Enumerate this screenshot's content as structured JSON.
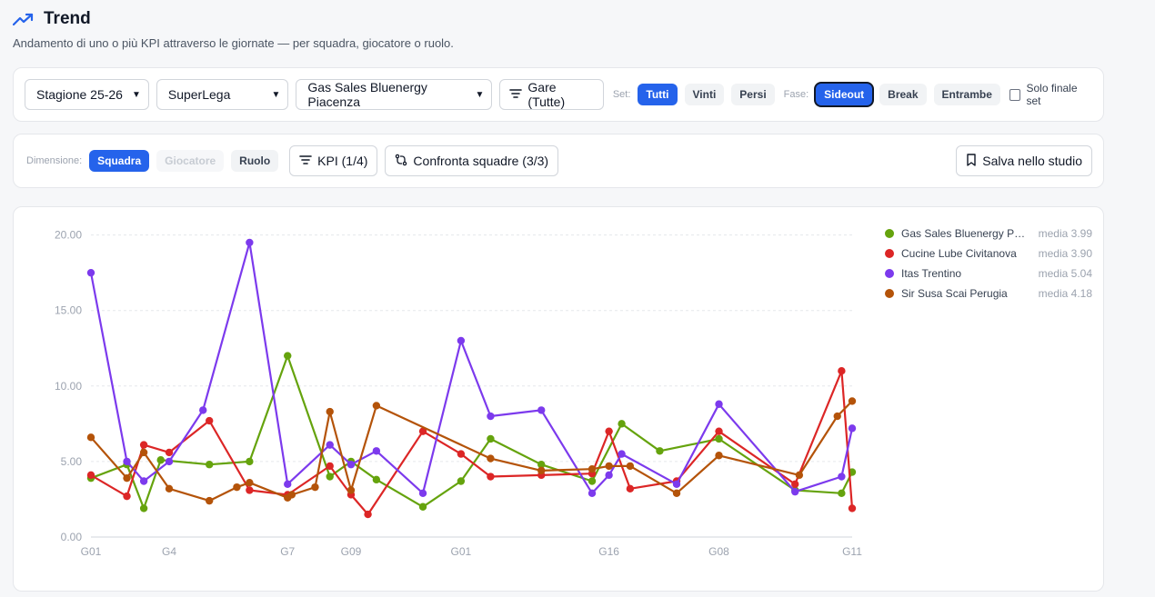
{
  "header": {
    "title": "Trend",
    "subtitle": "Andamento di uno o più KPI attraverso le giornate — per squadra, giocatore o ruolo."
  },
  "filters": {
    "season": "Stagione 25-26",
    "league": "SuperLega",
    "team": "Gas Sales Bluenergy Piacenza",
    "games_label": "Gare (Tutte)",
    "set_label": "Set:",
    "set_options": [
      "Tutti",
      "Vinti",
      "Persi"
    ],
    "set_selected": "Tutti",
    "phase_label": "Fase:",
    "phase_options": [
      "Sideout",
      "Break",
      "Entrambe"
    ],
    "phase_selected": "Sideout",
    "final_set_label": "Solo finale set",
    "final_set_checked": false
  },
  "dimensions": {
    "label": "Dimensione:",
    "options": [
      "Squadra",
      "Giocatore",
      "Ruolo"
    ],
    "selected": "Squadra",
    "disabled": [
      "Giocatore"
    ],
    "kpi_label": "KPI (1/4)",
    "compare_label": "Confronta squadre (3/3)",
    "save_label": "Salva nello studio"
  },
  "colors": {
    "accent": "#2563eb",
    "green": "#65a30d",
    "red": "#dc2626",
    "purple": "#7c3aed",
    "orange": "#b45309"
  },
  "icons": {
    "trend": "trending-up-icon",
    "filter": "filter-icon",
    "compare": "compare-arrows-icon",
    "save": "bookmark-icon",
    "select": "chevron-down-icon"
  },
  "chart_data": {
    "type": "line",
    "ylim": [
      0,
      21
    ],
    "yticks": [
      "0.00",
      "5.00",
      "10.00",
      "15.00",
      "20.00"
    ],
    "xlim": [
      0,
      36
    ],
    "xticks": [
      {
        "x": 0,
        "label": "G01"
      },
      {
        "x": 3.7,
        "label": "G4"
      },
      {
        "x": 9.3,
        "label": "G7"
      },
      {
        "x": 12.3,
        "label": "G09"
      },
      {
        "x": 17.5,
        "label": "G01"
      },
      {
        "x": 24.5,
        "label": "G16"
      },
      {
        "x": 29.7,
        "label": "G08"
      },
      {
        "x": 36,
        "label": "G11"
      }
    ],
    "grid": true,
    "legend": "right",
    "series": [
      {
        "name": "Gas Sales Bluenergy Piacenza",
        "average": "media 3.99",
        "color": "#65a30d",
        "points": [
          [
            0,
            3.9
          ],
          [
            1.7,
            4.8
          ],
          [
            2.5,
            1.9
          ],
          [
            3.3,
            5.1
          ],
          [
            5.6,
            4.8
          ],
          [
            7.5,
            5.0
          ],
          [
            9.3,
            12.0
          ],
          [
            11.3,
            4.0
          ],
          [
            12.3,
            5.0
          ],
          [
            13.5,
            3.8
          ],
          [
            15.7,
            2.0
          ],
          [
            17.5,
            3.7
          ],
          [
            18.9,
            6.5
          ],
          [
            21.3,
            4.8
          ],
          [
            23.7,
            3.7
          ],
          [
            25.1,
            7.5
          ],
          [
            26.9,
            5.7
          ],
          [
            29.7,
            6.5
          ],
          [
            33.3,
            3.1
          ],
          [
            35.5,
            2.9
          ],
          [
            36,
            4.3
          ]
        ]
      },
      {
        "name": "Cucine Lube Civitanova",
        "average": "media 3.90",
        "color": "#dc2626",
        "points": [
          [
            0,
            4.1
          ],
          [
            1.7,
            2.7
          ],
          [
            2.5,
            6.1
          ],
          [
            3.7,
            5.6
          ],
          [
            5.6,
            7.7
          ],
          [
            7.5,
            3.1
          ],
          [
            9.3,
            2.8
          ],
          [
            11.3,
            4.7
          ],
          [
            12.3,
            2.8
          ],
          [
            13.1,
            1.5
          ],
          [
            15.7,
            7.0
          ],
          [
            17.5,
            5.5
          ],
          [
            18.9,
            4.0
          ],
          [
            21.3,
            4.1
          ],
          [
            23.7,
            4.2
          ],
          [
            24.5,
            7.0
          ],
          [
            25.5,
            3.2
          ],
          [
            27.7,
            3.7
          ],
          [
            29.7,
            7.0
          ],
          [
            33.3,
            3.5
          ],
          [
            35.5,
            11.0
          ],
          [
            36,
            1.9
          ]
        ]
      },
      {
        "name": "Itas Trentino",
        "average": "media 5.04",
        "color": "#7c3aed",
        "points": [
          [
            0,
            17.5
          ],
          [
            1.7,
            5.0
          ],
          [
            2.5,
            3.7
          ],
          [
            3.7,
            5.0
          ],
          [
            5.3,
            8.4
          ],
          [
            7.5,
            19.5
          ],
          [
            9.3,
            3.5
          ],
          [
            11.3,
            6.1
          ],
          [
            12.3,
            4.8
          ],
          [
            13.5,
            5.7
          ],
          [
            15.7,
            2.9
          ],
          [
            17.5,
            13.0
          ],
          [
            18.9,
            8.0
          ],
          [
            21.3,
            8.4
          ],
          [
            23.7,
            2.9
          ],
          [
            24.5,
            4.1
          ],
          [
            25.1,
            5.5
          ],
          [
            27.7,
            3.5
          ],
          [
            29.7,
            8.8
          ],
          [
            33.3,
            3.0
          ],
          [
            35.5,
            4.0
          ],
          [
            36,
            7.2
          ]
        ]
      },
      {
        "name": "Sir Susa Scai Perugia",
        "average": "media 4.18",
        "color": "#b45309",
        "points": [
          [
            0,
            6.6
          ],
          [
            1.7,
            3.9
          ],
          [
            2.5,
            5.6
          ],
          [
            3.7,
            3.2
          ],
          [
            5.6,
            2.4
          ],
          [
            6.9,
            3.3
          ],
          [
            7.5,
            3.6
          ],
          [
            9.3,
            2.6
          ],
          [
            9.5,
            2.8
          ],
          [
            10.6,
            3.3
          ],
          [
            11.3,
            8.3
          ],
          [
            12.3,
            3.1
          ],
          [
            13.5,
            8.7
          ],
          [
            18.9,
            5.2
          ],
          [
            21.3,
            4.4
          ],
          [
            23.7,
            4.5
          ],
          [
            24.5,
            4.7
          ],
          [
            25.5,
            4.7
          ],
          [
            27.7,
            2.9
          ],
          [
            29.7,
            5.4
          ],
          [
            33.5,
            4.1
          ],
          [
            35.3,
            8.0
          ],
          [
            36,
            9.0
          ]
        ]
      }
    ]
  }
}
